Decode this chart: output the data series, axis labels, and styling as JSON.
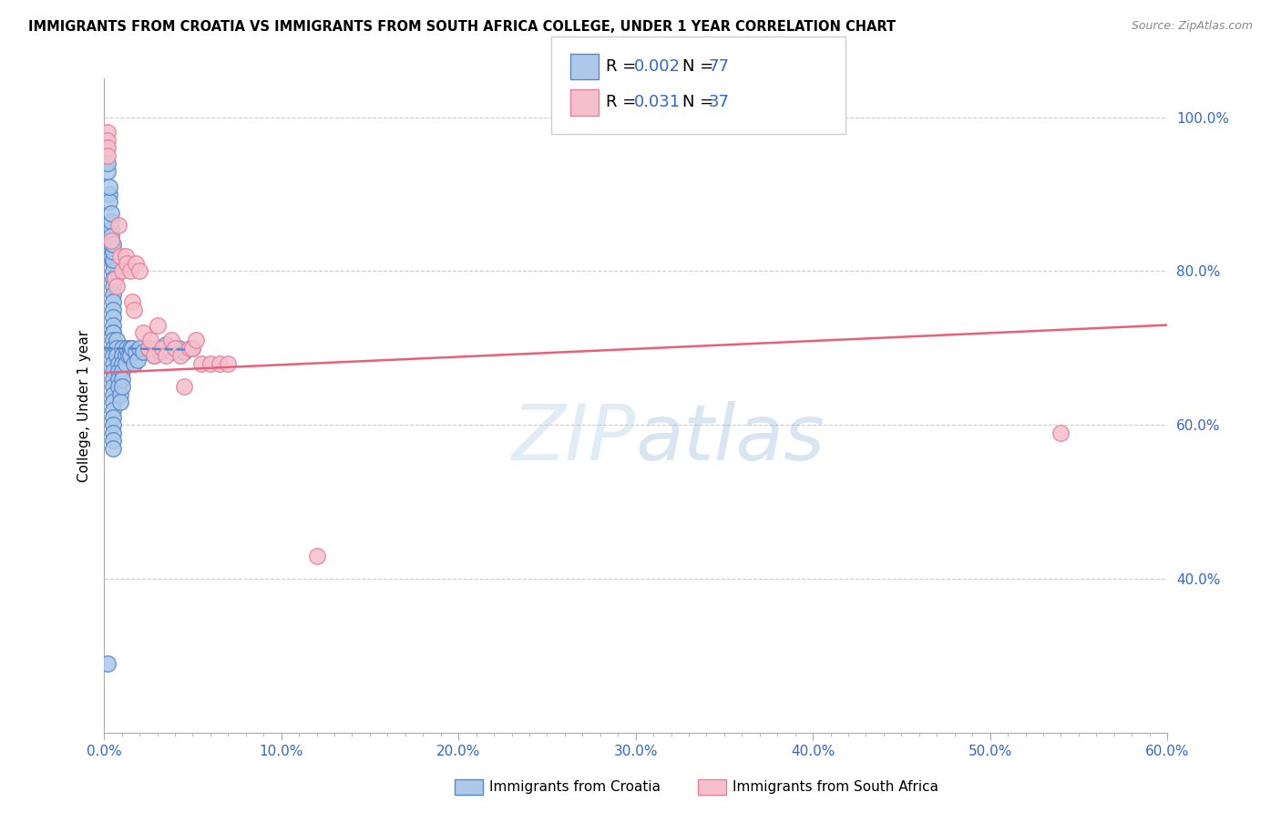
{
  "title": "IMMIGRANTS FROM CROATIA VS IMMIGRANTS FROM SOUTH AFRICA COLLEGE, UNDER 1 YEAR CORRELATION CHART",
  "source": "Source: ZipAtlas.com",
  "ylabel": "College, Under 1 year",
  "xlim": [
    0.0,
    0.6
  ],
  "ylim": [
    0.2,
    1.05
  ],
  "xtick_labels": [
    "0.0%",
    "",
    "",
    "",
    "",
    "",
    "",
    "",
    "",
    "10.0%",
    "",
    "",
    "",
    "",
    "",
    "",
    "",
    "",
    "",
    "20.0%",
    "",
    "",
    "",
    "",
    "",
    "",
    "",
    "",
    "",
    "30.0%",
    "",
    "",
    "",
    "",
    "",
    "",
    "",
    "",
    "",
    "40.0%",
    "",
    "",
    "",
    "",
    "",
    "",
    "",
    "",
    "",
    "50.0%",
    "",
    "",
    "",
    "",
    "",
    "",
    "",
    "",
    "",
    "60.0%"
  ],
  "ytick_labels": [
    "40.0%",
    "60.0%",
    "80.0%",
    "100.0%"
  ],
  "ytick_vals": [
    0.4,
    0.6,
    0.8,
    1.0
  ],
  "blue_R": "0.002",
  "blue_N": "77",
  "pink_R": "0.031",
  "pink_N": "37",
  "blue_color": "#adc8e8",
  "blue_edge": "#5588cc",
  "pink_color": "#f5bfcc",
  "pink_edge": "#e8809a",
  "blue_line_color": "#5588cc",
  "pink_line_color": "#e8607a",
  "watermark_color": "#b8d0e8",
  "legend_R_color": "#3366cc",
  "blue_scatter_x": [
    0.002,
    0.002,
    0.003,
    0.003,
    0.003,
    0.004,
    0.004,
    0.004,
    0.004,
    0.004,
    0.004,
    0.005,
    0.005,
    0.005,
    0.005,
    0.005,
    0.005,
    0.005,
    0.005,
    0.005,
    0.005,
    0.005,
    0.005,
    0.005,
    0.005,
    0.005,
    0.005,
    0.005,
    0.005,
    0.005,
    0.005,
    0.005,
    0.005,
    0.005,
    0.005,
    0.005,
    0.005,
    0.005,
    0.005,
    0.005,
    0.007,
    0.007,
    0.007,
    0.008,
    0.008,
    0.008,
    0.008,
    0.009,
    0.009,
    0.01,
    0.01,
    0.01,
    0.01,
    0.01,
    0.01,
    0.012,
    0.012,
    0.013,
    0.014,
    0.015,
    0.015,
    0.016,
    0.017,
    0.018,
    0.019,
    0.02,
    0.022,
    0.025,
    0.028,
    0.03,
    0.032,
    0.035,
    0.038,
    0.042,
    0.045,
    0.05,
    0.002
  ],
  "blue_scatter_y": [
    0.93,
    0.94,
    0.9,
    0.89,
    0.91,
    0.855,
    0.865,
    0.875,
    0.845,
    0.835,
    0.82,
    0.81,
    0.8,
    0.79,
    0.78,
    0.77,
    0.76,
    0.75,
    0.74,
    0.73,
    0.72,
    0.815,
    0.825,
    0.835,
    0.72,
    0.71,
    0.7,
    0.69,
    0.68,
    0.67,
    0.66,
    0.65,
    0.64,
    0.63,
    0.62,
    0.61,
    0.6,
    0.59,
    0.58,
    0.57,
    0.71,
    0.7,
    0.69,
    0.68,
    0.67,
    0.66,
    0.65,
    0.64,
    0.63,
    0.7,
    0.69,
    0.68,
    0.67,
    0.66,
    0.65,
    0.69,
    0.68,
    0.7,
    0.69,
    0.7,
    0.69,
    0.7,
    0.68,
    0.695,
    0.685,
    0.7,
    0.695,
    0.7,
    0.69,
    0.7,
    0.695,
    0.705,
    0.695,
    0.7,
    0.695,
    0.7,
    0.29
  ],
  "pink_scatter_x": [
    0.002,
    0.002,
    0.002,
    0.002,
    0.004,
    0.006,
    0.007,
    0.008,
    0.009,
    0.01,
    0.012,
    0.013,
    0.015,
    0.016,
    0.017,
    0.018,
    0.02,
    0.022,
    0.025,
    0.026,
    0.028,
    0.03,
    0.033,
    0.035,
    0.038,
    0.04,
    0.043,
    0.045,
    0.048,
    0.05,
    0.052,
    0.055,
    0.06,
    0.065,
    0.07,
    0.12,
    0.54
  ],
  "pink_scatter_y": [
    0.98,
    0.97,
    0.96,
    0.95,
    0.84,
    0.79,
    0.78,
    0.86,
    0.82,
    0.8,
    0.82,
    0.81,
    0.8,
    0.76,
    0.75,
    0.81,
    0.8,
    0.72,
    0.7,
    0.71,
    0.69,
    0.73,
    0.7,
    0.69,
    0.71,
    0.7,
    0.69,
    0.65,
    0.7,
    0.7,
    0.71,
    0.68,
    0.68,
    0.68,
    0.68,
    0.43,
    0.59
  ],
  "blue_trend_x": [
    0.0,
    0.047
  ],
  "blue_trend_y": [
    0.7,
    0.698
  ],
  "pink_trend_x": [
    0.0,
    0.6
  ],
  "pink_trend_y": [
    0.668,
    0.73
  ]
}
